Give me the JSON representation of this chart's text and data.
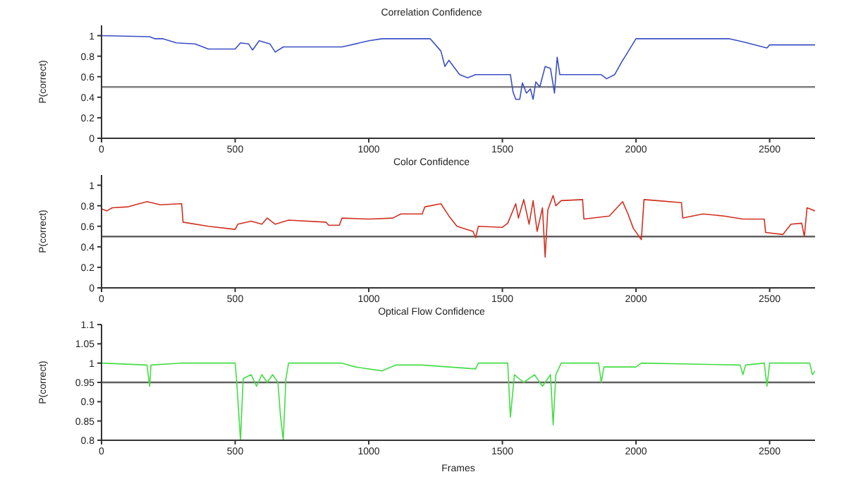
{
  "chart_data": [
    {
      "type": "line",
      "title": "Correlation Confidence",
      "ylabel": "P(correct)",
      "xlim": [
        0,
        2670
      ],
      "xticks": [
        0,
        500,
        1000,
        1500,
        2000,
        2500
      ],
      "ylim": [
        0,
        1.1
      ],
      "yticks": [
        0,
        0.2,
        0.4,
        0.6,
        0.8,
        1
      ],
      "marker": "none",
      "line_style": "solid",
      "ref_lines": [
        {
          "axis": "y",
          "value": 0.5,
          "color": "#808080"
        }
      ],
      "series": [
        {
          "color": "#3a4fc4",
          "x": [
            0,
            180,
            200,
            230,
            280,
            350,
            400,
            500,
            520,
            550,
            565,
            590,
            630,
            650,
            680,
            900,
            1000,
            1050,
            1230,
            1270,
            1285,
            1300,
            1340,
            1370,
            1400,
            1530,
            1540,
            1550,
            1565,
            1575,
            1590,
            1605,
            1615,
            1625,
            1640,
            1660,
            1680,
            1695,
            1705,
            1715,
            1870,
            1890,
            1920,
            1950,
            1960,
            2000,
            2350,
            2400,
            2490,
            2500,
            2670
          ],
          "values": [
            1.0,
            0.99,
            0.97,
            0.97,
            0.93,
            0.92,
            0.87,
            0.87,
            0.93,
            0.92,
            0.86,
            0.95,
            0.92,
            0.84,
            0.89,
            0.89,
            0.95,
            0.97,
            0.97,
            0.85,
            0.7,
            0.76,
            0.62,
            0.59,
            0.62,
            0.62,
            0.45,
            0.38,
            0.38,
            0.54,
            0.44,
            0.48,
            0.38,
            0.55,
            0.5,
            0.7,
            0.68,
            0.44,
            0.79,
            0.62,
            0.62,
            0.58,
            0.62,
            0.76,
            0.8,
            0.97,
            0.97,
            0.94,
            0.88,
            0.91,
            0.91
          ]
        }
      ]
    },
    {
      "type": "line",
      "title": "Color Confidence",
      "ylabel": "P(correct)",
      "xlim": [
        0,
        2670
      ],
      "xticks": [
        0,
        500,
        1000,
        1500,
        2000,
        2500
      ],
      "ylim": [
        0,
        1.1
      ],
      "yticks": [
        0,
        0.2,
        0.4,
        0.6,
        0.8,
        1
      ],
      "marker": "none",
      "line_style": "solid",
      "ref_lines": [
        {
          "axis": "y",
          "value": 0.5,
          "color": "#606060"
        }
      ],
      "series": [
        {
          "color": "#d03020",
          "x": [
            0,
            20,
            40,
            100,
            170,
            220,
            300,
            305,
            400,
            500,
            510,
            560,
            600,
            620,
            650,
            700,
            840,
            850,
            890,
            900,
            1000,
            1090,
            1120,
            1200,
            1210,
            1270,
            1300,
            1330,
            1390,
            1400,
            1410,
            1500,
            1520,
            1550,
            1560,
            1580,
            1600,
            1615,
            1630,
            1650,
            1660,
            1670,
            1690,
            1700,
            1720,
            1800,
            1805,
            1900,
            1950,
            1970,
            1990,
            2020,
            2030,
            2080,
            2170,
            2175,
            2250,
            2330,
            2400,
            2480,
            2485,
            2550,
            2580,
            2620,
            2630,
            2640,
            2670
          ],
          "values": [
            0.77,
            0.75,
            0.78,
            0.79,
            0.84,
            0.81,
            0.82,
            0.64,
            0.6,
            0.57,
            0.62,
            0.65,
            0.62,
            0.68,
            0.62,
            0.66,
            0.64,
            0.61,
            0.61,
            0.68,
            0.67,
            0.68,
            0.72,
            0.72,
            0.79,
            0.82,
            0.7,
            0.6,
            0.55,
            0.49,
            0.6,
            0.59,
            0.63,
            0.82,
            0.68,
            0.86,
            0.62,
            0.85,
            0.55,
            0.78,
            0.3,
            0.76,
            0.9,
            0.8,
            0.85,
            0.86,
            0.67,
            0.7,
            0.84,
            0.72,
            0.58,
            0.47,
            0.86,
            0.85,
            0.83,
            0.68,
            0.72,
            0.7,
            0.67,
            0.67,
            0.54,
            0.52,
            0.62,
            0.63,
            0.5,
            0.78,
            0.75
          ]
        }
      ]
    },
    {
      "type": "line",
      "title": "Optical Flow Confidence",
      "xlabel": "Frames",
      "ylabel": "P(correct)",
      "xlim": [
        0,
        2670
      ],
      "xticks": [
        0,
        500,
        1000,
        1500,
        2000,
        2500
      ],
      "ylim": [
        0.8,
        1.1
      ],
      "yticks": [
        0.8,
        0.85,
        0.9,
        0.95,
        1,
        1.05,
        1.1
      ],
      "marker": "none",
      "line_style": "solid",
      "ref_lines": [
        {
          "axis": "y",
          "value": 0.95,
          "color": "#606060"
        }
      ],
      "series": [
        {
          "color": "#44dd44",
          "x": [
            0,
            170,
            180,
            185,
            300,
            500,
            505,
            520,
            530,
            560,
            580,
            600,
            620,
            640,
            660,
            670,
            680,
            690,
            700,
            900,
            950,
            1050,
            1100,
            1200,
            1400,
            1410,
            1520,
            1530,
            1545,
            1580,
            1620,
            1650,
            1680,
            1690,
            1700,
            1720,
            1860,
            1870,
            1880,
            2000,
            2020,
            2390,
            2400,
            2410,
            2480,
            2490,
            2500,
            2650,
            2660,
            2670
          ],
          "values": [
            1.0,
            0.995,
            0.94,
            0.995,
            1.0,
            1.0,
            0.96,
            0.8,
            0.96,
            0.97,
            0.94,
            0.97,
            0.95,
            0.97,
            0.95,
            0.86,
            0.8,
            0.96,
            1.0,
            1.0,
            0.99,
            0.98,
            0.995,
            0.995,
            0.985,
            1.0,
            1.0,
            0.86,
            0.97,
            0.95,
            0.97,
            0.94,
            0.97,
            0.84,
            0.97,
            1.0,
            1.0,
            0.95,
            0.99,
            0.99,
            1.0,
            0.995,
            0.97,
            0.995,
            1.0,
            0.94,
            1.0,
            1.0,
            0.97,
            0.98
          ]
        }
      ]
    }
  ]
}
